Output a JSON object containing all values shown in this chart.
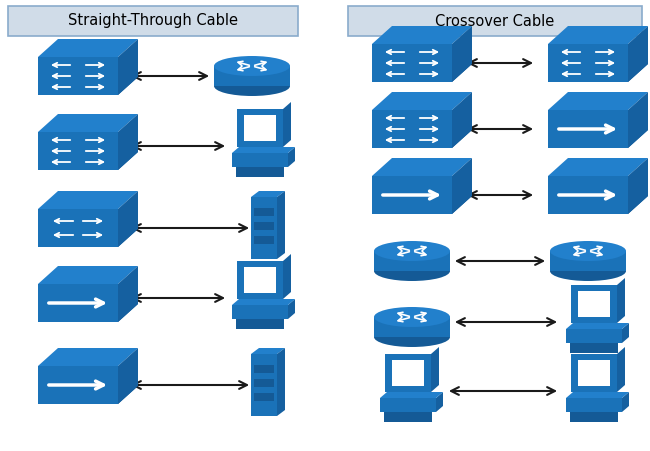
{
  "title_left": "Straight-Through Cable",
  "title_right": "Crossover Cable",
  "bg_color": "#ffffff",
  "title_bg": "#d0dce8",
  "title_border": "#8aabcc",
  "blue": "#1a72b8",
  "blue_dark": "#145a96",
  "blue_side": "#1560a0",
  "blue_top": "#2280cc",
  "white": "#ffffff",
  "arrow_color": "#1a1a1a",
  "figsize": [
    6.5,
    4.51
  ],
  "dpi": 100
}
